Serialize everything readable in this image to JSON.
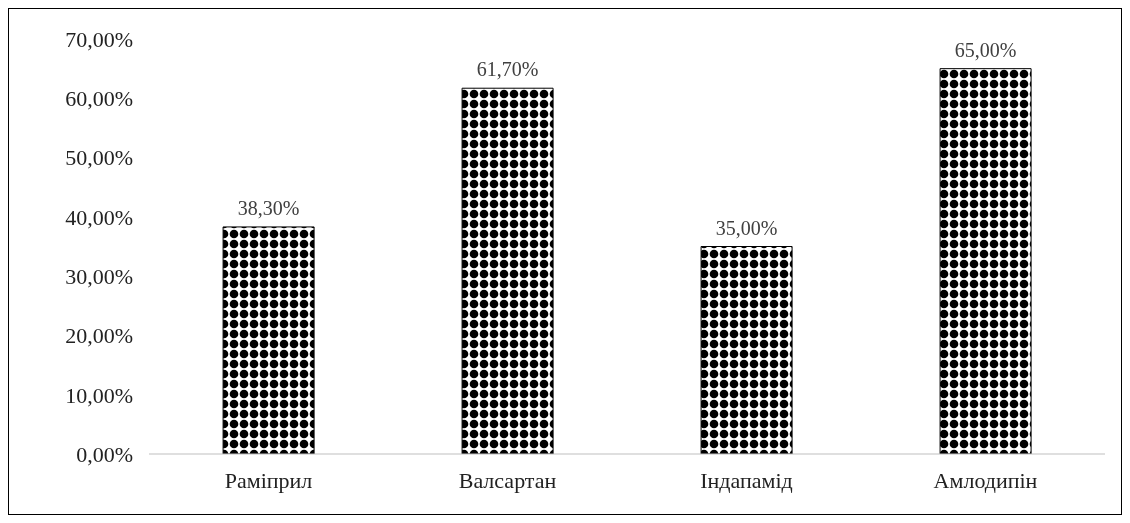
{
  "chart_data": {
    "type": "bar",
    "categories": [
      "Раміприл",
      "Валсартан",
      "Індапамід",
      "Амлодипін"
    ],
    "values": [
      38.3,
      61.7,
      35.0,
      65.0
    ],
    "color": "#000000",
    "value_labels": [
      "38,30%",
      "61,70%",
      "35,00%",
      "65,00%"
    ],
    "ylim": [
      0,
      70
    ],
    "yticks": [
      {
        "value": 0,
        "label": "0,00%"
      },
      {
        "value": 10,
        "label": "10,00%"
      },
      {
        "value": 20,
        "label": "20,00%"
      },
      {
        "value": 30,
        "label": "30,00%"
      },
      {
        "value": 40,
        "label": "40,00%"
      },
      {
        "value": 50,
        "label": "50,00%"
      },
      {
        "value": 60,
        "label": "60,00%"
      },
      {
        "value": 70,
        "label": "70,00%"
      }
    ]
  }
}
